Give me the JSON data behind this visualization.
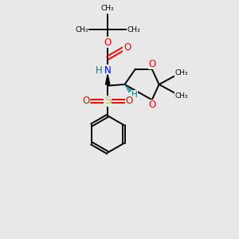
{
  "background_color": "#e8e8e8",
  "bond_color": "#000000",
  "oxygen_color": "#ff0000",
  "nitrogen_color": "#0000ff",
  "sulfur_color": "#cccc00",
  "carbon_color": "#000000",
  "h_color": "#008080",
  "figsize": [
    3.0,
    3.0
  ],
  "dpi": 100,
  "xlim": [
    0,
    10
  ],
  "ylim": [
    0,
    10
  ]
}
